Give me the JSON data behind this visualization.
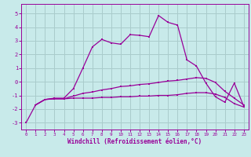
{
  "background_color": "#c8eaea",
  "grid_color": "#aacccc",
  "line_color": "#990099",
  "xlabel": "Windchill (Refroidissement éolien,°C)",
  "xlim": [
    -0.5,
    23.5
  ],
  "ylim": [
    -3.5,
    5.7
  ],
  "yticks": [
    -3,
    -2,
    -1,
    0,
    1,
    2,
    3,
    4,
    5
  ],
  "xticks": [
    0,
    1,
    2,
    3,
    4,
    5,
    6,
    7,
    8,
    9,
    10,
    11,
    12,
    13,
    14,
    15,
    16,
    17,
    18,
    19,
    20,
    21,
    22,
    23
  ],
  "line1_y": [
    null,
    -1.7,
    -1.3,
    -1.25,
    -1.25,
    -1.2,
    -1.2,
    -1.2,
    -1.15,
    -1.15,
    -1.1,
    -1.1,
    -1.05,
    -1.05,
    -1.0,
    -1.0,
    -0.95,
    -0.85,
    -0.8,
    -0.8,
    -0.9,
    -1.15,
    -1.6,
    -1.85
  ],
  "line2_y": [
    null,
    -1.7,
    -1.3,
    -1.25,
    -1.25,
    -1.05,
    -0.85,
    -0.75,
    -0.6,
    -0.5,
    -0.35,
    -0.3,
    -0.2,
    -0.15,
    -0.05,
    0.05,
    0.1,
    0.2,
    0.3,
    0.25,
    -0.05,
    -0.7,
    -1.2,
    -1.7
  ],
  "line3_y": [
    -3.0,
    -1.7,
    -1.3,
    -1.2,
    -1.2,
    -0.5,
    1.0,
    2.55,
    3.1,
    2.85,
    2.75,
    3.45,
    3.4,
    3.3,
    4.85,
    4.35,
    4.15,
    1.6,
    1.15,
    -0.1,
    -1.1,
    -1.5,
    -0.1,
    -1.8
  ]
}
